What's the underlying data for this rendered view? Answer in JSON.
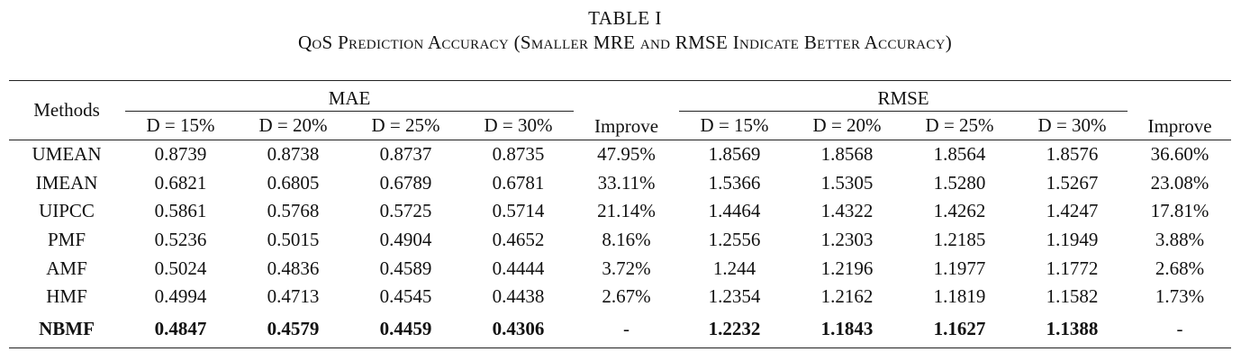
{
  "caption": {
    "label": "TABLE I",
    "title": "QoS Prediction Accuracy (Smaller MRE and RMSE Indicate Better Accuracy)"
  },
  "header": {
    "methods": "Methods",
    "mae": "MAE",
    "rmse": "RMSE",
    "improve": "Improve",
    "densities": [
      "D = 15%",
      "D = 20%",
      "D = 25%",
      "D = 30%"
    ]
  },
  "rows": [
    {
      "method": "UMEAN",
      "mae": [
        "0.8739",
        "0.8738",
        "0.8737",
        "0.8735"
      ],
      "mae_improve": "47.95%",
      "rmse": [
        "1.8569",
        "1.8568",
        "1.8564",
        "1.8576"
      ],
      "rmse_improve": "36.60%"
    },
    {
      "method": "IMEAN",
      "mae": [
        "0.6821",
        "0.6805",
        "0.6789",
        "0.6781"
      ],
      "mae_improve": "33.11%",
      "rmse": [
        "1.5366",
        "1.5305",
        "1.5280",
        "1.5267"
      ],
      "rmse_improve": "23.08%"
    },
    {
      "method": "UIPCC",
      "mae": [
        "0.5861",
        "0.5768",
        "0.5725",
        "0.5714"
      ],
      "mae_improve": "21.14%",
      "rmse": [
        "1.4464",
        "1.4322",
        "1.4262",
        "1.4247"
      ],
      "rmse_improve": "17.81%"
    },
    {
      "method": "PMF",
      "mae": [
        "0.5236",
        "0.5015",
        "0.4904",
        "0.4652"
      ],
      "mae_improve": "8.16%",
      "rmse": [
        "1.2556",
        "1.2303",
        "1.2185",
        "1.1949"
      ],
      "rmse_improve": "3.88%"
    },
    {
      "method": "AMF",
      "mae": [
        "0.5024",
        "0.4836",
        "0.4589",
        "0.4444"
      ],
      "mae_improve": "3.72%",
      "rmse": [
        "1.244",
        "1.2196",
        "1.1977",
        "1.1772"
      ],
      "rmse_improve": "2.68%"
    },
    {
      "method": "HMF",
      "mae": [
        "0.4994",
        "0.4713",
        "0.4545",
        "0.4438"
      ],
      "mae_improve": "2.67%",
      "rmse": [
        "1.2354",
        "1.2162",
        "1.1819",
        "1.1582"
      ],
      "rmse_improve": "1.73%"
    },
    {
      "method": "NBMF",
      "mae": [
        "0.4847",
        "0.4579",
        "0.4459",
        "0.4306"
      ],
      "mae_improve": "-",
      "rmse": [
        "1.2232",
        "1.1843",
        "1.1627",
        "1.1388"
      ],
      "rmse_improve": "-"
    }
  ]
}
